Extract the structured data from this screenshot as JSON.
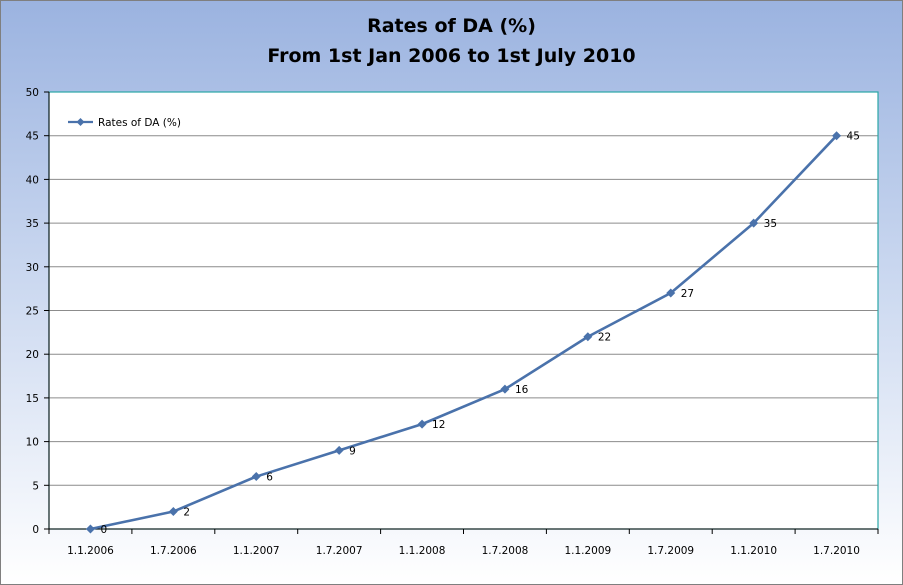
{
  "chart_data": {
    "type": "line",
    "title": "Rates of DA (%)",
    "subtitle": "From 1st Jan 2006 to 1st July 2010",
    "categories": [
      "1.1.2006",
      "1.7.2006",
      "1.1.2007",
      "1.7.2007",
      "1.1.2008",
      "1.7.2008",
      "1.1.2009",
      "1.7.2009",
      "1.1.2010",
      "1.7.2010"
    ],
    "series": [
      {
        "name": "Rates of DA (%)",
        "values": [
          0,
          2,
          6,
          9,
          12,
          16,
          22,
          27,
          35,
          45
        ],
        "color": "#4a72ab"
      }
    ],
    "ylim": [
      0,
      50
    ],
    "yticks": [
      0,
      5,
      10,
      15,
      20,
      25,
      30,
      35,
      40,
      45,
      50
    ],
    "xlabel": "",
    "ylabel": "",
    "grid": true,
    "legend": "top-left",
    "data_labels": true,
    "plot_border_color": "#2aa6a6"
  }
}
